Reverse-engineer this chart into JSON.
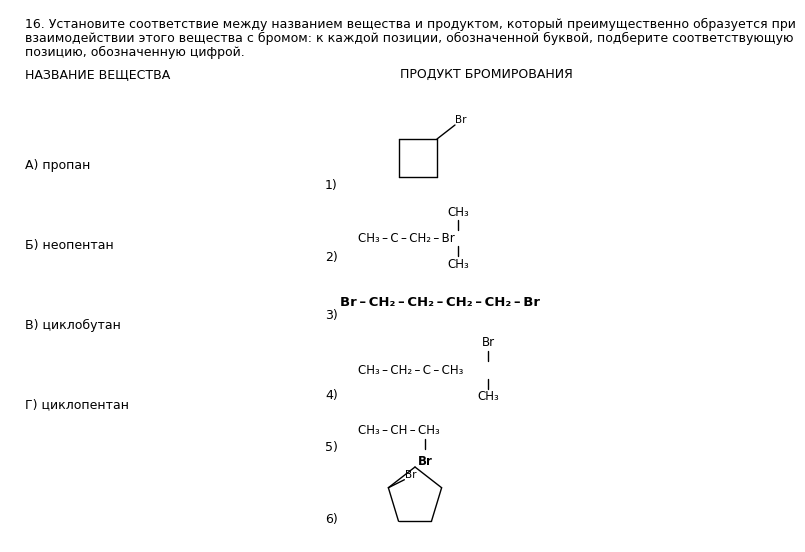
{
  "title_line1": "16. Установите соответствие между названием вещества и продуктом, который преимущественно образуется при",
  "title_line2": "взаимодействии этого вещества с бромом: к каждой позиции, обозначенной буквой, подберите соответствующую",
  "title_line3": "позицию, обозначенную цифрой.",
  "col1_header": "НАЗВАНИЕ ВЕЩЕСТВА",
  "col2_header": "ПРОДУКТ БРОМИРОВАНИЯ",
  "substances": [
    "А) пропан",
    "Б) неопентан",
    "В) циклобутан",
    "Г) циклопентан"
  ],
  "product_labels": [
    "1)",
    "2)",
    "3)",
    "4)",
    "5)",
    "6)"
  ],
  "bg_color": "#ffffff",
  "text_color": "#000000",
  "fs_title": 9.0,
  "fs_header": 9.0,
  "fs_body": 9.0,
  "fs_formula": 8.5,
  "fs_formula_bold": 9.5
}
